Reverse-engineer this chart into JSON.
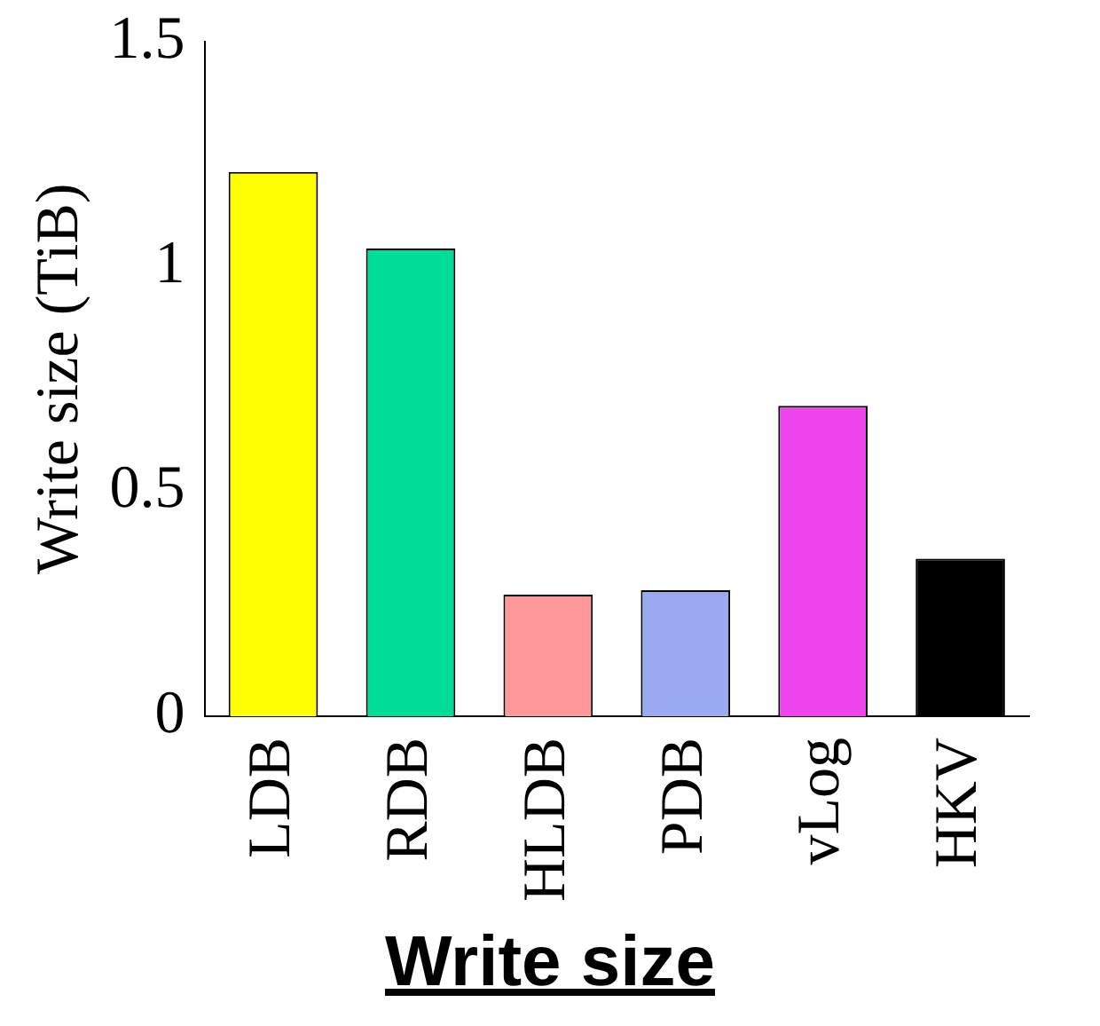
{
  "chart_data": {
    "type": "bar",
    "xlabel": "Write size",
    "ylabel": "Write size (TiB)",
    "categories": [
      "LDB",
      "RDB",
      "HLDB",
      "PDB",
      "vLog",
      "HKV"
    ],
    "values": [
      1.21,
      1.04,
      0.27,
      0.28,
      0.69,
      0.35
    ],
    "colors": [
      "#ffff00",
      "#00dd99",
      "#ff9999",
      "#99aaee",
      "#ee44ee",
      "#000000"
    ],
    "ylim": [
      0,
      1.5
    ],
    "yticks": [
      0,
      0.5,
      1,
      1.5
    ],
    "grid": false,
    "legend": false
  }
}
